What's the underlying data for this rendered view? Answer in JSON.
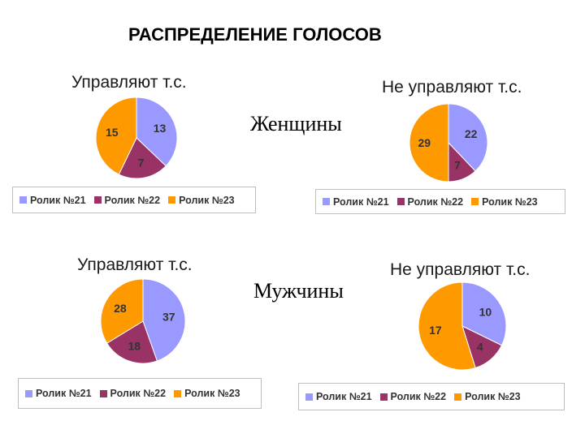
{
  "page_title": "РАСПРЕДЕЛЕНИЕ ГОЛОСОВ",
  "groups": {
    "women": "Женщины",
    "men": "Мужчины"
  },
  "legend": [
    "Ролик №21",
    "Ролик №22",
    "Ролик №23"
  ],
  "colors": {
    "roll21": "#9999ff",
    "roll22": "#993366",
    "roll23": "#ff9900"
  },
  "chart_data": [
    {
      "type": "pie",
      "group": "Женщины",
      "title": "Управляют т.с.",
      "categories": [
        "Ролик №21",
        "Ролик №22",
        "Ролик №23"
      ],
      "values": [
        13,
        7,
        15
      ]
    },
    {
      "type": "pie",
      "group": "Женщины",
      "title": "Не управляют т.с.",
      "categories": [
        "Ролик №21",
        "Ролик №22",
        "Ролик №23"
      ],
      "values": [
        22,
        7,
        29
      ]
    },
    {
      "type": "pie",
      "group": "Мужчины",
      "title": "Управляют т.с.",
      "categories": [
        "Ролик №21",
        "Ролик №22",
        "Ролик №23"
      ],
      "values": [
        37,
        18,
        28
      ]
    },
    {
      "type": "pie",
      "group": "Мужчины",
      "title": "Не управляют т.с.",
      "categories": [
        "Ролик №21",
        "Ролик №22",
        "Ролик №23"
      ],
      "values": [
        10,
        4,
        17
      ]
    }
  ]
}
